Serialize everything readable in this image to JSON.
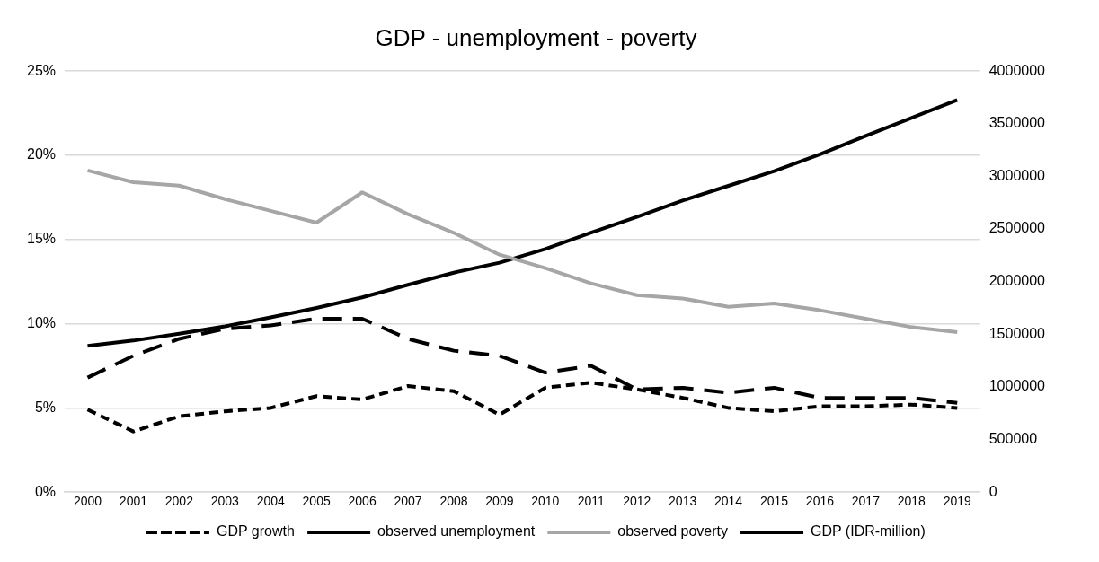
{
  "chart_data": {
    "type": "line",
    "title": "GDP - unemployment - poverty",
    "categories": [
      "2000",
      "2001",
      "2002",
      "2003",
      "2004",
      "2005",
      "2006",
      "2007",
      "2008",
      "2009",
      "2010",
      "2011",
      "2012",
      "2013",
      "2014",
      "2015",
      "2016",
      "2017",
      "2018",
      "2019"
    ],
    "series": [
      {
        "name": "GDP growth",
        "color": "#000000",
        "line_style": "dashed",
        "values": [
          4.9,
          3.6,
          4.5,
          4.8,
          5.0,
          5.7,
          5.5,
          6.3,
          6.0,
          4.6,
          6.2,
          6.5,
          6.1,
          5.6,
          5.0,
          4.8,
          5.1,
          5.1,
          5.2,
          5.0
        ]
      },
      {
        "name": "observed unemployment",
        "color": "#000000",
        "line_style": "dashed",
        "values": [
          6.8,
          8.1,
          9.1,
          9.7,
          9.9,
          10.3,
          10.3,
          9.1,
          8.4,
          8.1,
          7.1,
          7.5,
          6.1,
          6.2,
          5.9,
          6.2,
          5.6,
          5.6,
          5.6,
          5.3
        ]
      },
      {
        "name": "observed poverty",
        "color": "#a6a6a6",
        "line_style": "solid",
        "values": [
          19.1,
          18.4,
          18.2,
          17.4,
          16.7,
          16.0,
          17.8,
          16.5,
          15.4,
          14.1,
          13.3,
          12.4,
          11.7,
          11.5,
          11.0,
          11.2,
          10.8,
          10.3,
          9.8,
          9.5
        ]
      },
      {
        "name": "GDP (IDR-million)",
        "color": "#000000",
        "line_style": "solid",
        "axis": "y2",
        "values": [
          1390000,
          1440000,
          1505000,
          1575000,
          1660000,
          1750000,
          1850000,
          1970000,
          2085000,
          2180000,
          2310000,
          2465000,
          2615000,
          2770000,
          2910000,
          3050000,
          3210000,
          3385000,
          3555000,
          3725000
        ]
      }
    ],
    "ylim": [
      0,
      25
    ],
    "yticks": [
      {
        "value": 0,
        "label": "0%"
      },
      {
        "value": 5,
        "label": "5%"
      },
      {
        "value": 10,
        "label": "10%"
      },
      {
        "value": 15,
        "label": "15%"
      },
      {
        "value": 20,
        "label": "20%"
      },
      {
        "value": 25,
        "label": "25%"
      }
    ],
    "y2lim": [
      0,
      4000000
    ],
    "y2ticks": [
      0,
      500000,
      1000000,
      1500000,
      2000000,
      2500000,
      3000000,
      3500000,
      4000000
    ],
    "grid": "y",
    "legend": "bottom",
    "marker": "none"
  }
}
